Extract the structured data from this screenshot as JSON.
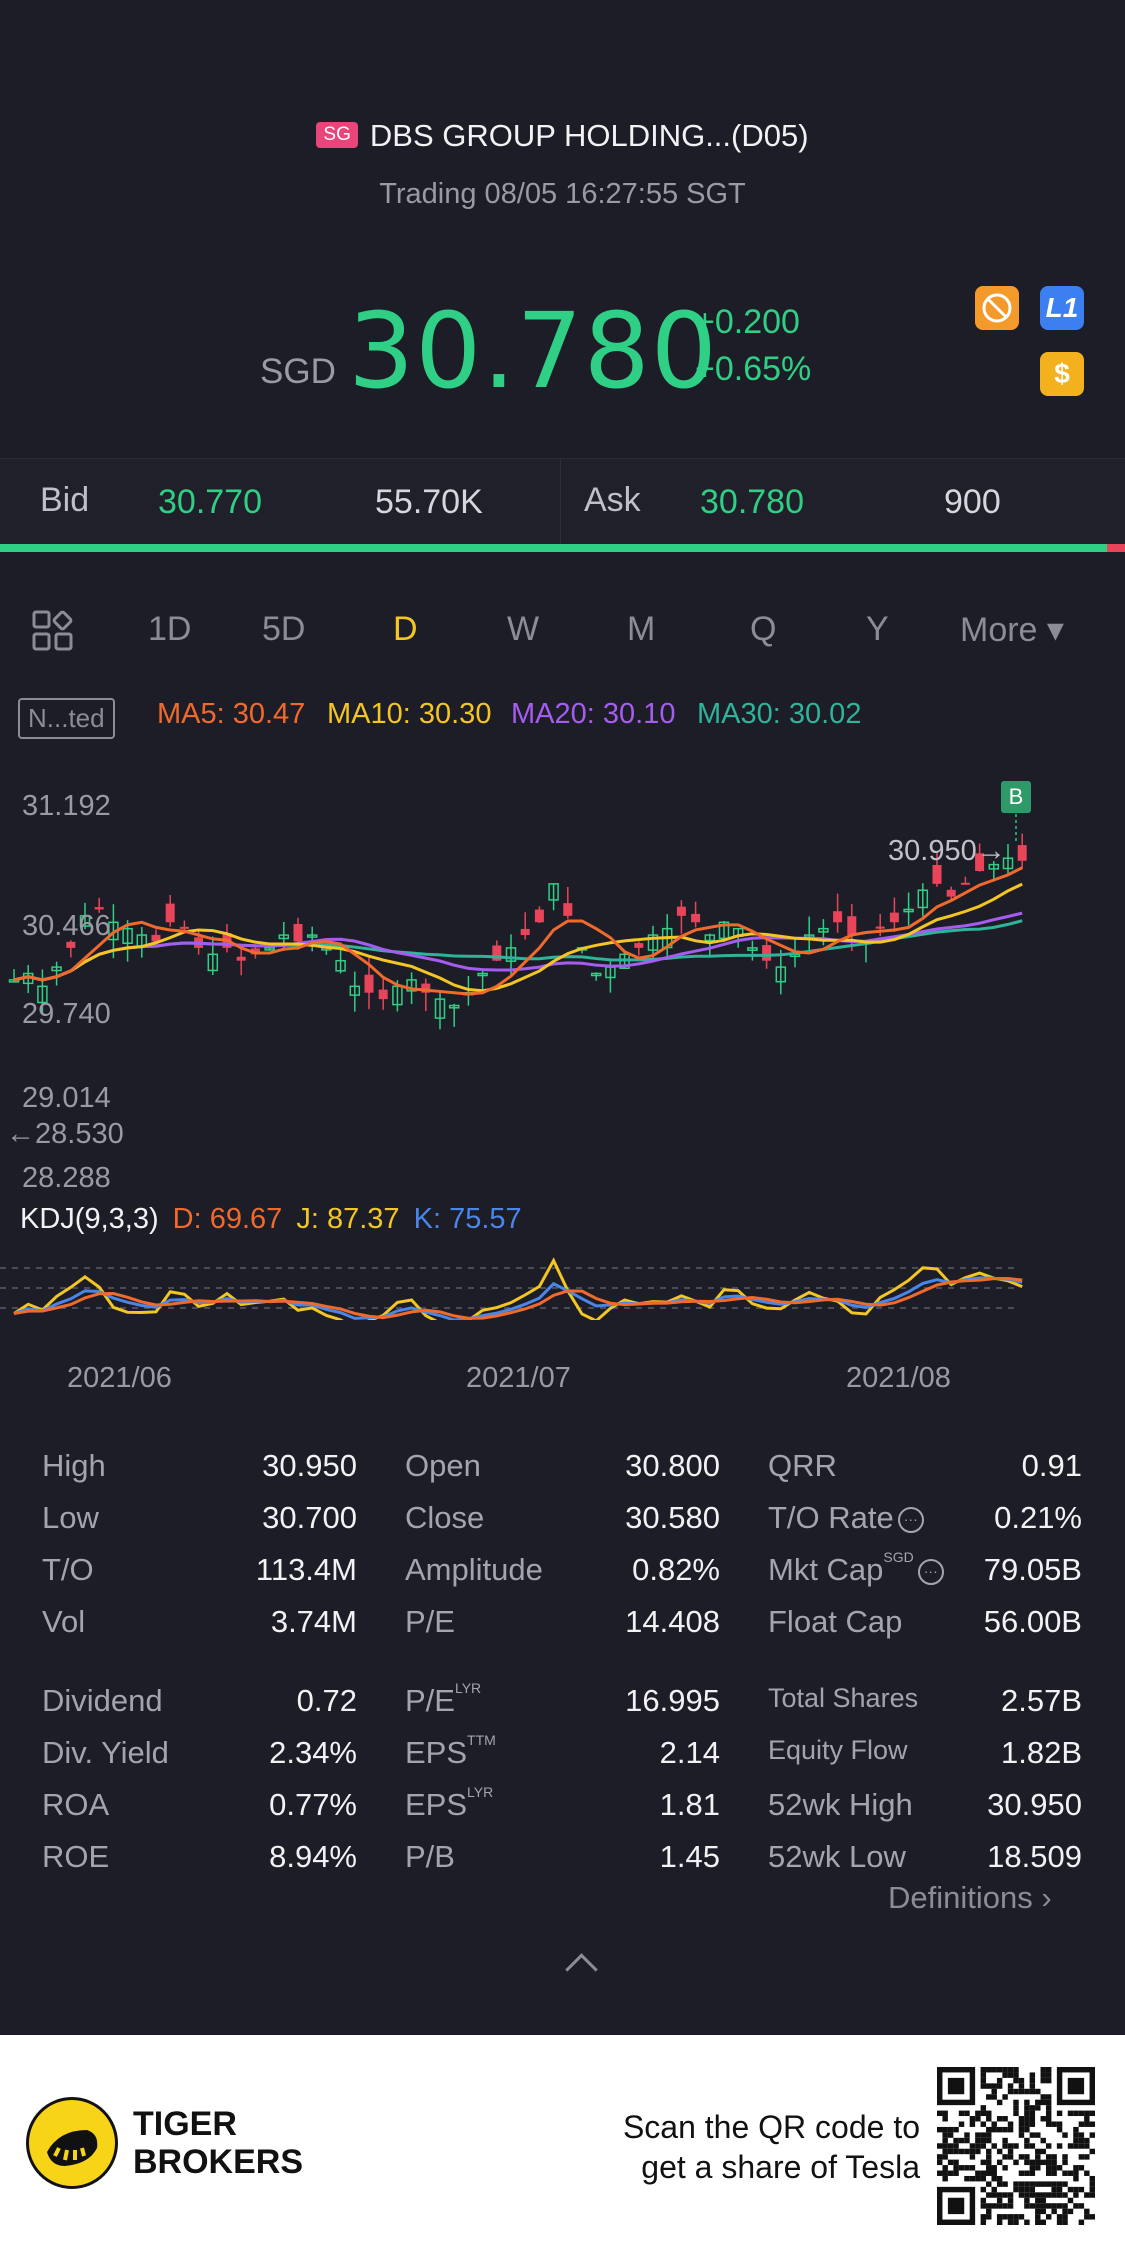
{
  "header": {
    "market_badge": "SG",
    "title": "DBS GROUP HOLDING...(D05)",
    "status": "Trading 08/05 16:27:55 SGT",
    "currency": "SGD",
    "price": "30.780",
    "change": "+0.200",
    "change_pct": "+0.65%",
    "icons": [
      "no-short-icon",
      "level1-icon",
      "dollar-icon"
    ],
    "icon_level1_text": "L1",
    "icon_dollar_text": "$"
  },
  "bid_ask": {
    "bid_label": "Bid",
    "bid_price": "30.770",
    "bid_volume": "55.70K",
    "ask_label": "Ask",
    "ask_price": "30.780",
    "ask_volume": "900"
  },
  "tabs": {
    "items": [
      "1D",
      "5D",
      "D",
      "W",
      "M",
      "Q",
      "Y"
    ],
    "active": "D",
    "more_label": "More ▾"
  },
  "indicator_box": "N...ted",
  "ma": {
    "ma5": "MA5: 30.47",
    "ma10": "MA10: 30.30",
    "ma20": "MA20: 30.10",
    "ma30": "MA30: 30.02"
  },
  "chart_axis": {
    "y_labels": [
      "31.192",
      "30.466",
      "29.740",
      "29.014",
      "28.288"
    ],
    "low_marker": "←28.530",
    "high_marker": "30.950→",
    "buy_badge": "B"
  },
  "kdj": {
    "label": "KDJ(9,3,3)",
    "d": "D: 69.67",
    "j": "J: 87.37",
    "k": "K: 75.57"
  },
  "dates": [
    "2021/06",
    "2021/07",
    "2021/08"
  ],
  "stats": {
    "col1": [
      {
        "label": "High",
        "value": "30.950"
      },
      {
        "label": "Low",
        "value": "30.700"
      },
      {
        "label": "T/O",
        "value": "113.4M"
      },
      {
        "label": "Vol",
        "value": "3.74M"
      },
      {
        "label": "Dividend",
        "value": "0.72"
      },
      {
        "label": "Div. Yield",
        "value": "2.34%"
      },
      {
        "label": "ROA",
        "value": "0.77%"
      },
      {
        "label": "ROE",
        "value": "8.94%"
      }
    ],
    "col2": [
      {
        "label": "Open",
        "value": "30.800"
      },
      {
        "label": "Close",
        "value": "30.580"
      },
      {
        "label": "Amplitude",
        "value": "0.82%"
      },
      {
        "label": "P/E",
        "value": "14.408"
      },
      {
        "label": "P/E",
        "sup": "LYR",
        "value": "16.995"
      },
      {
        "label": "EPS",
        "sup": "TTM",
        "value": "2.14"
      },
      {
        "label": "EPS",
        "sup": "LYR",
        "value": "1.81"
      },
      {
        "label": "P/B",
        "value": "1.45"
      }
    ],
    "col3": [
      {
        "label": "QRR",
        "value": "0.91"
      },
      {
        "label": "T/O Rate",
        "value": "0.21%"
      },
      {
        "label": "Mkt Cap",
        "sup": "SGD",
        "value": "79.05B"
      },
      {
        "label": "Float Cap",
        "value": "56.00B"
      },
      {
        "label": "Total Shares",
        "value": "2.57B"
      },
      {
        "label": "Equity Flow",
        "value": "1.82B"
      },
      {
        "label": "52wk High",
        "value": "30.950"
      },
      {
        "label": "52wk Low",
        "value": "18.509"
      }
    ],
    "definitions": "Definitions ›"
  },
  "footer": {
    "brand_line1": "TIGER",
    "brand_line2": "BROKERS",
    "scan_line1": "Scan the QR code to",
    "scan_line2": "get a share of Tesla"
  },
  "colors": {
    "up": "#2fcf85",
    "down": "#e9455a",
    "ma5": "#f06a2e",
    "ma10": "#f3c623",
    "ma20": "#a55cf0",
    "ma30": "#2fb39a",
    "k": "#4a86e8",
    "d": "#f06a2e",
    "j": "#f3c623"
  }
}
